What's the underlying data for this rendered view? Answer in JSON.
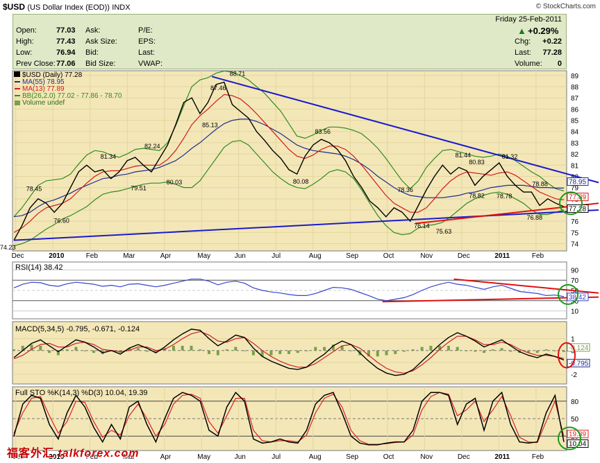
{
  "header": {
    "symbol": "$USD",
    "name": "(US Dollar Index (EOD))",
    "exchange": "INDX",
    "brand": "© StockCharts.com"
  },
  "quote": {
    "open_label": "Open:",
    "open": "77.03",
    "high_label": "High:",
    "high": "77.43",
    "low_label": "Low:",
    "low": "76.94",
    "prev_label": "Prev Close:",
    "prev": "77.06",
    "ask_label": "Ask:",
    "asksize_label": "Ask Size:",
    "bid_label": "Bid:",
    "bidsize_label": "Bid Size:",
    "pe_label": "P/E:",
    "eps_label": "EPS:",
    "last_label": "Last:",
    "vwap_label": "VWAP:",
    "date": "Friday   25-Feb-2011",
    "pct": "+0.29%",
    "chg_label": "Chg:",
    "chg": "+0.22",
    "last2_label": "Last:",
    "last": "77.28",
    "volume_label": "Volume:",
    "volume": "0"
  },
  "legend": {
    "price": "$USD (Daily) 77.28",
    "ma55": "MA(55) 78.95",
    "ma13": "MA(13) 77.89",
    "bb": "BB(26,2.0) 77.02 - 77.86 - 78.70",
    "volume": "Volume undef"
  },
  "colors": {
    "panel_bg": "#f3e7b8",
    "price": "#000000",
    "ma55": "#1f2b8f",
    "ma13": "#d41a1a",
    "bb": "#2e8b1f",
    "trend_blue": "#1a1acc",
    "trend_red": "#e01010",
    "rsi": "#3344cc",
    "macd_signal": "#cc2222",
    "macd_hist": "#7ca04a",
    "sto_k": "#000000",
    "sto_d": "#dd2222"
  },
  "chart_data": [
    {
      "type": "line",
      "panel": "price",
      "x_tick_labels": [
        "Dec",
        "2010",
        "Feb",
        "Mar",
        "Apr",
        "May",
        "Jun",
        "Jul",
        "Aug",
        "Sep",
        "Oct",
        "Nov",
        "Dec",
        "2011",
        "Feb"
      ],
      "y_ticks": [
        74,
        75,
        76,
        77,
        78,
        79,
        80,
        81,
        82,
        83,
        84,
        85,
        86,
        87,
        88,
        89
      ],
      "ylim": [
        73.6,
        89.3
      ],
      "annotations": [
        {
          "label": "74.23",
          "value": 74.23
        },
        {
          "label": "78.45",
          "value": 78.45
        },
        {
          "label": "76.60",
          "value": 76.6
        },
        {
          "label": "81.34",
          "value": 81.34
        },
        {
          "label": "79.51",
          "value": 79.51
        },
        {
          "label": "82.24",
          "value": 82.24
        },
        {
          "label": "80.03",
          "value": 80.03
        },
        {
          "label": "87.46",
          "value": 87.46
        },
        {
          "label": "85.13",
          "value": 85.13
        },
        {
          "label": "88.71",
          "value": 88.71
        },
        {
          "label": "83.56",
          "value": 83.56
        },
        {
          "label": "80.08",
          "value": 80.08
        },
        {
          "label": "78.36",
          "value": 78.36
        },
        {
          "label": "76.14",
          "value": 76.14
        },
        {
          "label": "75.63",
          "value": 75.63
        },
        {
          "label": "81.44",
          "value": 81.44
        },
        {
          "label": "80.83",
          "value": 80.83
        },
        {
          "label": "78.82",
          "value": 78.82
        },
        {
          "label": "81.32",
          "value": 81.32
        },
        {
          "label": "78.78",
          "value": 78.78
        },
        {
          "label": "78.88",
          "value": 78.88
        },
        {
          "label": "76.88",
          "value": 76.88
        }
      ],
      "right_labels": [
        {
          "label": "78.95",
          "value": 78.95
        },
        {
          "label": "77.89",
          "value": 77.89
        },
        {
          "label": "77.28",
          "value": 77.28
        }
      ],
      "series": [
        {
          "name": "$USD (Daily) 77.28",
          "values": [
            74.3,
            75.6,
            77.2,
            78.0,
            77.6,
            76.8,
            77.6,
            79.0,
            80.4,
            81.0,
            80.4,
            80.6,
            79.8,
            80.4,
            81.4,
            81.7,
            81.0,
            80.4,
            81.6,
            82.8,
            84.6,
            86.6,
            87.0,
            85.6,
            86.6,
            88.2,
            88.4,
            86.4,
            85.8,
            85.2,
            84.0,
            83.2,
            82.3,
            81.6,
            80.6,
            80.2,
            81.8,
            82.8,
            83.3,
            83.0,
            82.4,
            81.4,
            80.0,
            79.0,
            77.8,
            77.2,
            76.4,
            77.2,
            76.8,
            76.0,
            77.4,
            78.8,
            80.0,
            81.0,
            80.2,
            80.8,
            80.5,
            79.2,
            80.0,
            80.6,
            81.2,
            80.0,
            79.2,
            78.6,
            78.6,
            77.4,
            78.0,
            77.6,
            77.3
          ]
        },
        {
          "name": "MA(55) 78.95",
          "values": [
            76.4,
            76.5,
            76.8,
            77.3,
            77.7,
            77.9,
            78.2,
            78.5,
            78.9,
            79.2,
            79.5,
            79.8,
            79.9,
            80.1,
            80.2,
            80.4,
            80.5,
            80.6,
            80.8,
            81.1,
            81.4,
            81.9,
            82.5,
            83.0,
            83.6,
            84.2,
            84.7,
            85.0,
            85.1,
            85.1,
            84.9,
            84.6,
            84.2,
            83.8,
            83.3,
            82.8,
            82.5,
            82.3,
            82.2,
            82.1,
            82.0,
            81.8,
            81.5,
            81.1,
            80.6,
            80.0,
            79.5,
            79.0,
            78.6,
            78.3,
            78.2,
            78.1,
            78.1,
            78.1,
            78.2,
            78.3,
            78.5,
            78.6,
            78.8,
            79.0,
            79.1,
            79.2,
            79.2,
            79.2,
            79.1,
            79.0,
            79.0,
            78.95,
            78.95
          ]
        },
        {
          "name": "MA(13) 77.89",
          "values": [
            75.0,
            75.4,
            76.0,
            76.7,
            77.2,
            77.4,
            77.6,
            78.0,
            78.7,
            79.4,
            80.0,
            80.4,
            80.5,
            80.5,
            80.7,
            80.9,
            81.0,
            81.0,
            81.0,
            81.5,
            82.3,
            83.4,
            84.6,
            85.4,
            86.0,
            86.7,
            87.3,
            87.2,
            86.9,
            86.3,
            85.6,
            84.8,
            84.0,
            83.2,
            82.4,
            81.8,
            81.6,
            81.9,
            82.4,
            82.7,
            82.7,
            82.4,
            81.8,
            81.0,
            80.1,
            79.2,
            78.3,
            77.6,
            77.2,
            76.8,
            76.8,
            77.2,
            78.0,
            78.9,
            79.6,
            80.1,
            80.4,
            80.3,
            80.2,
            80.1,
            80.3,
            80.4,
            80.1,
            79.6,
            79.1,
            78.6,
            78.3,
            78.0,
            77.9
          ]
        },
        {
          "name": "BB upper",
          "values": [
            76.4,
            77.2,
            78.2,
            79.2,
            79.6,
            79.7,
            79.8,
            80.2,
            81.1,
            81.9,
            82.3,
            82.2,
            81.9,
            81.7,
            82.0,
            82.4,
            82.5,
            82.4,
            82.3,
            83.0,
            84.5,
            86.3,
            88.0,
            88.6,
            88.8,
            89.2,
            89.4,
            89.3,
            89.0,
            88.6,
            88.0,
            87.4,
            86.6,
            85.8,
            84.7,
            83.6,
            83.4,
            83.7,
            84.1,
            84.4,
            84.4,
            84.3,
            84.1,
            83.8,
            83.2,
            82.5,
            81.6,
            80.6,
            79.6,
            78.9,
            79.6,
            80.8,
            81.6,
            82.3,
            82.4,
            82.2,
            82.0,
            81.8,
            81.7,
            81.8,
            82.0,
            81.8,
            81.4,
            80.9,
            80.4,
            80.0,
            79.4,
            78.9,
            78.7
          ]
        },
        {
          "name": "BB lower",
          "values": [
            73.8,
            74.0,
            74.3,
            74.8,
            75.3,
            75.7,
            76.2,
            76.5,
            76.9,
            77.3,
            77.9,
            78.4,
            78.6,
            78.7,
            78.9,
            79.1,
            79.3,
            79.4,
            79.4,
            79.5,
            79.3,
            79.0,
            79.0,
            79.6,
            80.6,
            81.6,
            82.6,
            83.1,
            83.2,
            82.8,
            82.0,
            81.2,
            80.4,
            79.8,
            79.3,
            79.0,
            78.9,
            79.3,
            79.8,
            80.4,
            80.6,
            80.4,
            79.8,
            78.8,
            77.6,
            76.5,
            75.6,
            75.0,
            74.8,
            74.9,
            75.4,
            75.6,
            75.7,
            75.9,
            76.4,
            77.0,
            77.6,
            78.0,
            78.3,
            78.5,
            78.6,
            78.4,
            78.0,
            77.6,
            77.0,
            76.6,
            76.6,
            76.8,
            77.0
          ]
        }
      ],
      "trendlines": [
        {
          "name": "upper resistance",
          "from": [
            0.36,
            88.9
          ],
          "to": [
            1.0,
            79.2
          ]
        },
        {
          "name": "lower support",
          "from": [
            0.0,
            74.3
          ],
          "to": [
            1.0,
            77.0
          ]
        },
        {
          "name": "red support",
          "from": [
            0.73,
            75.8
          ],
          "to": [
            1.0,
            77.6
          ]
        }
      ]
    },
    {
      "type": "line",
      "panel": "rsi",
      "title": "RSI(14) 38.42",
      "y_ticks": [
        10,
        30,
        50,
        70,
        90
      ],
      "ylim": [
        0,
        100
      ],
      "right_label": "38.42",
      "series": [
        {
          "name": "RSI(14) 38.42",
          "values": [
            55,
            62,
            66,
            65,
            60,
            58,
            63,
            66,
            64,
            62,
            58,
            60,
            57,
            62,
            63,
            60,
            57,
            60,
            64,
            68,
            72,
            72,
            68,
            61,
            66,
            68,
            64,
            55,
            50,
            47,
            45,
            42,
            40,
            40,
            44,
            50,
            56,
            55,
            52,
            46,
            40,
            33,
            30,
            33,
            36,
            42,
            50,
            57,
            62,
            66,
            62,
            60,
            56,
            52,
            57,
            60,
            54,
            48,
            46,
            44,
            40,
            41,
            38
          ]
        }
      ]
    },
    {
      "type": "line",
      "panel": "macd",
      "title": "MACD(5,34,5) -0.795, -0.671, -0.124",
      "y_ticks": [
        -2,
        -1,
        0,
        1
      ],
      "ylim": [
        -2.7,
        2.2
      ],
      "right_labels": [
        {
          "label": "-0.124",
          "value": -0.124
        },
        {
          "label": "-0.795",
          "value": -0.795
        }
      ],
      "series": [
        {
          "name": "MACD",
          "values": [
            -0.6,
            0.0,
            0.6,
            0.9,
            0.4,
            -0.1,
            0.4,
            0.9,
            0.7,
            0.3,
            -0.2,
            0.0,
            -0.3,
            0.2,
            0.5,
            0.2,
            -0.2,
            0.3,
            0.9,
            1.4,
            1.8,
            1.7,
            1.0,
            0.4,
            0.8,
            1.3,
            1.1,
            0.2,
            -0.5,
            -0.9,
            -1.2,
            -1.5,
            -1.6,
            -1.4,
            -0.8,
            -0.3,
            0.4,
            0.8,
            0.5,
            -0.2,
            -0.9,
            -1.5,
            -1.9,
            -2.1,
            -2.0,
            -1.6,
            -0.9,
            -0.2,
            0.5,
            1.1,
            1.5,
            1.2,
            0.8,
            0.3,
            0.6,
            0.9,
            0.4,
            -0.1,
            -0.4,
            -0.6,
            -0.3,
            -0.5,
            -0.8
          ]
        },
        {
          "name": "Signal",
          "values": [
            -0.7,
            -0.4,
            0.1,
            0.5,
            0.6,
            0.3,
            0.3,
            0.6,
            0.7,
            0.5,
            0.1,
            0.0,
            -0.1,
            0.0,
            0.3,
            0.3,
            0.0,
            0.1,
            0.5,
            1.0,
            1.4,
            1.6,
            1.3,
            0.8,
            0.7,
            1.0,
            1.1,
            0.6,
            0.0,
            -0.5,
            -0.9,
            -1.2,
            -1.4,
            -1.4,
            -1.1,
            -0.6,
            -0.1,
            0.4,
            0.5,
            0.2,
            -0.4,
            -1.0,
            -1.5,
            -1.8,
            -1.9,
            -1.7,
            -1.2,
            -0.6,
            0.1,
            0.7,
            1.2,
            1.2,
            0.9,
            0.5,
            0.5,
            0.7,
            0.5,
            0.1,
            -0.2,
            -0.4,
            -0.4,
            -0.5,
            -0.67
          ]
        },
        {
          "name": "Histogram",
          "values": [
            0.1,
            0.4,
            0.5,
            0.4,
            -0.2,
            -0.4,
            0.1,
            0.3,
            0.0,
            -0.2,
            -0.3,
            0.0,
            -0.2,
            0.2,
            0.2,
            -0.1,
            -0.2,
            0.2,
            0.4,
            0.4,
            0.4,
            0.1,
            -0.3,
            -0.4,
            0.1,
            0.3,
            0.0,
            -0.4,
            -0.5,
            -0.4,
            -0.3,
            -0.3,
            -0.2,
            0.0,
            0.3,
            0.3,
            0.5,
            0.4,
            0.0,
            -0.4,
            -0.5,
            -0.5,
            -0.4,
            -0.3,
            -0.1,
            0.1,
            0.3,
            0.4,
            0.4,
            0.4,
            0.3,
            0.0,
            -0.1,
            -0.2,
            0.1,
            0.2,
            -0.1,
            -0.2,
            -0.2,
            -0.2,
            0.1,
            0.0,
            -0.12
          ]
        }
      ]
    },
    {
      "type": "line",
      "panel": "stochastic",
      "title": "Full STO %K(14,3) %D(3) 10.04, 19.39",
      "x_tick_labels": [
        "Dec",
        "2010",
        "Feb",
        "Mar",
        "Apr",
        "May",
        "Jun",
        "Jul",
        "Aug",
        "Sep",
        "Oct",
        "Nov",
        "Dec",
        "2011",
        "Feb"
      ],
      "y_ticks": [
        20,
        50,
        80
      ],
      "ylim": [
        0,
        100
      ],
      "right_labels": [
        {
          "label": "19.39",
          "value": 19.39
        },
        {
          "label": "10.04",
          "value": 10.04
        }
      ],
      "series": [
        {
          "name": "%K",
          "values": [
            20,
            75,
            90,
            85,
            40,
            15,
            60,
            90,
            70,
            35,
            10,
            40,
            15,
            70,
            80,
            40,
            10,
            50,
            85,
            95,
            90,
            80,
            30,
            20,
            70,
            95,
            80,
            15,
            8,
            10,
            15,
            10,
            8,
            30,
            75,
            90,
            95,
            60,
            20,
            8,
            5,
            5,
            8,
            10,
            10,
            30,
            80,
            95,
            95,
            90,
            40,
            75,
            85,
            30,
            80,
            95,
            40,
            10,
            8,
            10,
            60,
            90,
            10
          ]
        },
        {
          "name": "%D",
          "values": [
            25,
            60,
            85,
            88,
            55,
            25,
            45,
            80,
            78,
            45,
            18,
            30,
            22,
            55,
            75,
            50,
            20,
            40,
            75,
            90,
            92,
            85,
            45,
            25,
            55,
            85,
            85,
            30,
            12,
            10,
            12,
            12,
            10,
            22,
            60,
            85,
            92,
            70,
            30,
            12,
            6,
            6,
            7,
            9,
            10,
            22,
            65,
            88,
            95,
            92,
            55,
            65,
            80,
            45,
            65,
            88,
            55,
            18,
            10,
            9,
            45,
            80,
            19
          ]
        }
      ]
    }
  ],
  "watermark": {
    "cn": "福客外汇",
    "en": "talkforex.com"
  }
}
